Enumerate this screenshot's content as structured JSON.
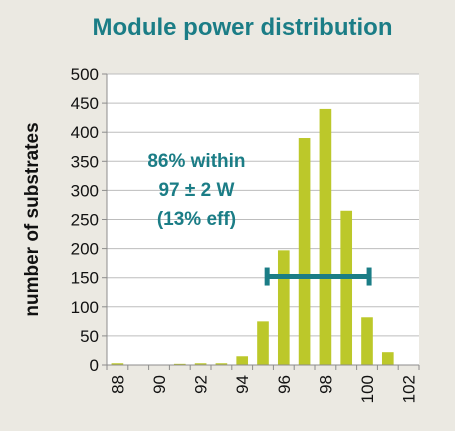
{
  "chart_data": {
    "type": "bar",
    "title": "Module power distribution",
    "xlabel": "",
    "ylabel": "number of substrates",
    "xlim": [
      87.5,
      102.5
    ],
    "ylim": [
      0,
      500
    ],
    "yticks": [
      0,
      50,
      100,
      150,
      200,
      250,
      300,
      350,
      400,
      450,
      500
    ],
    "xticks": [
      88,
      90,
      92,
      94,
      96,
      98,
      100,
      102
    ],
    "x": [
      88,
      89,
      90,
      91,
      92,
      93,
      94,
      95,
      96,
      97,
      98,
      99,
      100,
      101,
      102
    ],
    "values": [
      3,
      0,
      0,
      2,
      3,
      3,
      15,
      75,
      197,
      390,
      440,
      265,
      82,
      22,
      0
    ],
    "grid": true,
    "bar_color": "#bcc82a",
    "annotation": {
      "lines": [
        "86% within",
        "97 ± 2 W",
        "(13% eff)"
      ],
      "color": "#1b7d86"
    },
    "range_marker": {
      "from": 95.2,
      "to": 100.1,
      "y": 152,
      "color": "#1b7d86"
    }
  }
}
